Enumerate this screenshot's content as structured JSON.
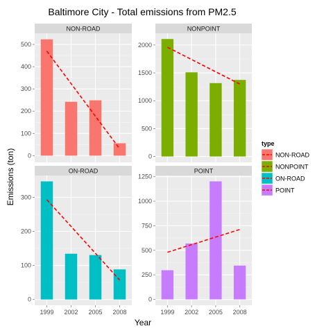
{
  "chart_data": {
    "type": "bar",
    "title": "Baltimore City  - Total emissions from PM2.5",
    "xlabel": "Year",
    "ylabel": "Emissions (ton)",
    "categories": [
      "1999",
      "2002",
      "2005",
      "2008"
    ],
    "grid": true,
    "legend": {
      "title": "type",
      "placement": "right",
      "entries": [
        "NON-ROAD",
        "NONPOINT",
        "ON-ROAD",
        "POINT"
      ]
    },
    "trend_line_color": "#ff0000",
    "panels": [
      {
        "name": "NON-ROAD",
        "color": "#f8766d",
        "values": [
          522.9,
          242.1,
          248.9,
          55.8
        ],
        "trend": [
          470,
          31
        ],
        "ylim": [
          -30,
          550
        ],
        "yticks": [
          0,
          100,
          200,
          300,
          400,
          500
        ],
        "ytick_labels": [
          "0",
          "100",
          "200",
          "300",
          "400",
          "500"
        ]
      },
      {
        "name": "NONPOINT",
        "color": "#7cae00",
        "values": [
          2107.6,
          1509.5,
          1316.5,
          1373.2
        ],
        "trend": [
          1960,
          1300
        ],
        "ylim": [
          -105,
          2210
        ],
        "yticks": [
          0,
          500,
          1000,
          1500,
          2000
        ],
        "ytick_labels": [
          "0",
          "500",
          "1000",
          "1500",
          "2000"
        ]
      },
      {
        "name": "ON-ROAD",
        "color": "#00bfc4",
        "values": [
          346.8,
          134.3,
          130.4,
          88.3
        ],
        "trend": [
          293,
          57
        ],
        "ylim": [
          -17,
          364
        ],
        "yticks": [
          0,
          100,
          200,
          300
        ],
        "ytick_labels": [
          "0",
          "100",
          "200",
          "300"
        ]
      },
      {
        "name": "POINT",
        "color": "#c77cff",
        "values": [
          296.8,
          569.3,
          1202.4,
          344.2
        ],
        "trend": [
          480,
          712
        ],
        "ylim": [
          -60,
          1262
        ],
        "yticks": [
          0,
          250,
          500,
          750,
          1000,
          1250
        ],
        "ytick_labels": [
          "0",
          "250",
          "500",
          "750",
          "1000",
          "1250"
        ]
      }
    ]
  }
}
